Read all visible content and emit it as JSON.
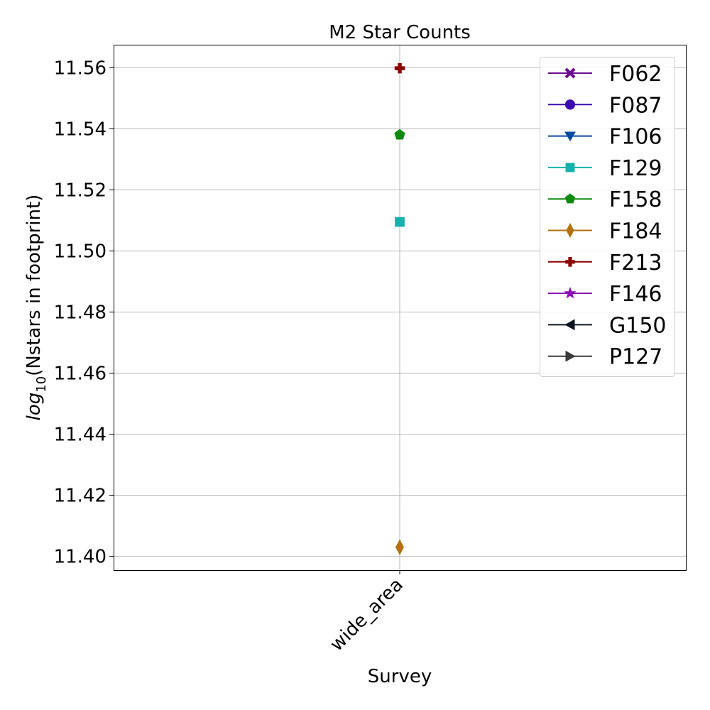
{
  "chart_data": {
    "type": "scatter",
    "title": "M2 Star Counts",
    "xlabel": "Survey",
    "ylabel_prefix": "log",
    "ylabel_subscript": "10",
    "ylabel_suffix": "(Nstars in footprint)",
    "categories": [
      "wide_area"
    ],
    "ylim": [
      11.3955,
      11.5675
    ],
    "yticks": [
      "11.40",
      "11.42",
      "11.44",
      "11.46",
      "11.48",
      "11.50",
      "11.52",
      "11.54",
      "11.56"
    ],
    "grid": true,
    "legend_position": "top-right",
    "series": [
      {
        "name": "F062",
        "color": "#6a0d91",
        "marker": "X",
        "values": [
          null
        ]
      },
      {
        "name": "F087",
        "color": "#3c0cb0",
        "marker": "o",
        "values": [
          null
        ]
      },
      {
        "name": "F106",
        "color": "#0b4a9e",
        "marker": "v",
        "values": [
          null
        ]
      },
      {
        "name": "F129",
        "color": "#12b3aa",
        "marker": "s",
        "values": [
          11.5095
        ]
      },
      {
        "name": "F158",
        "color": "#0e8a0e",
        "marker": "p",
        "values": [
          11.538
        ]
      },
      {
        "name": "F184",
        "color": "#b3700f",
        "marker": "d",
        "values": [
          11.403
        ]
      },
      {
        "name": "F213",
        "color": "#8b0000",
        "marker": "P",
        "values": [
          11.5598
        ]
      },
      {
        "name": "F146",
        "color": "#8a10b8",
        "marker": "*",
        "values": [
          null
        ]
      },
      {
        "name": "G150",
        "color": "#0b1420",
        "marker": "<",
        "values": [
          null
        ]
      },
      {
        "name": "P127",
        "color": "#3a3a3a",
        "marker": ">",
        "values": [
          null
        ]
      }
    ]
  }
}
